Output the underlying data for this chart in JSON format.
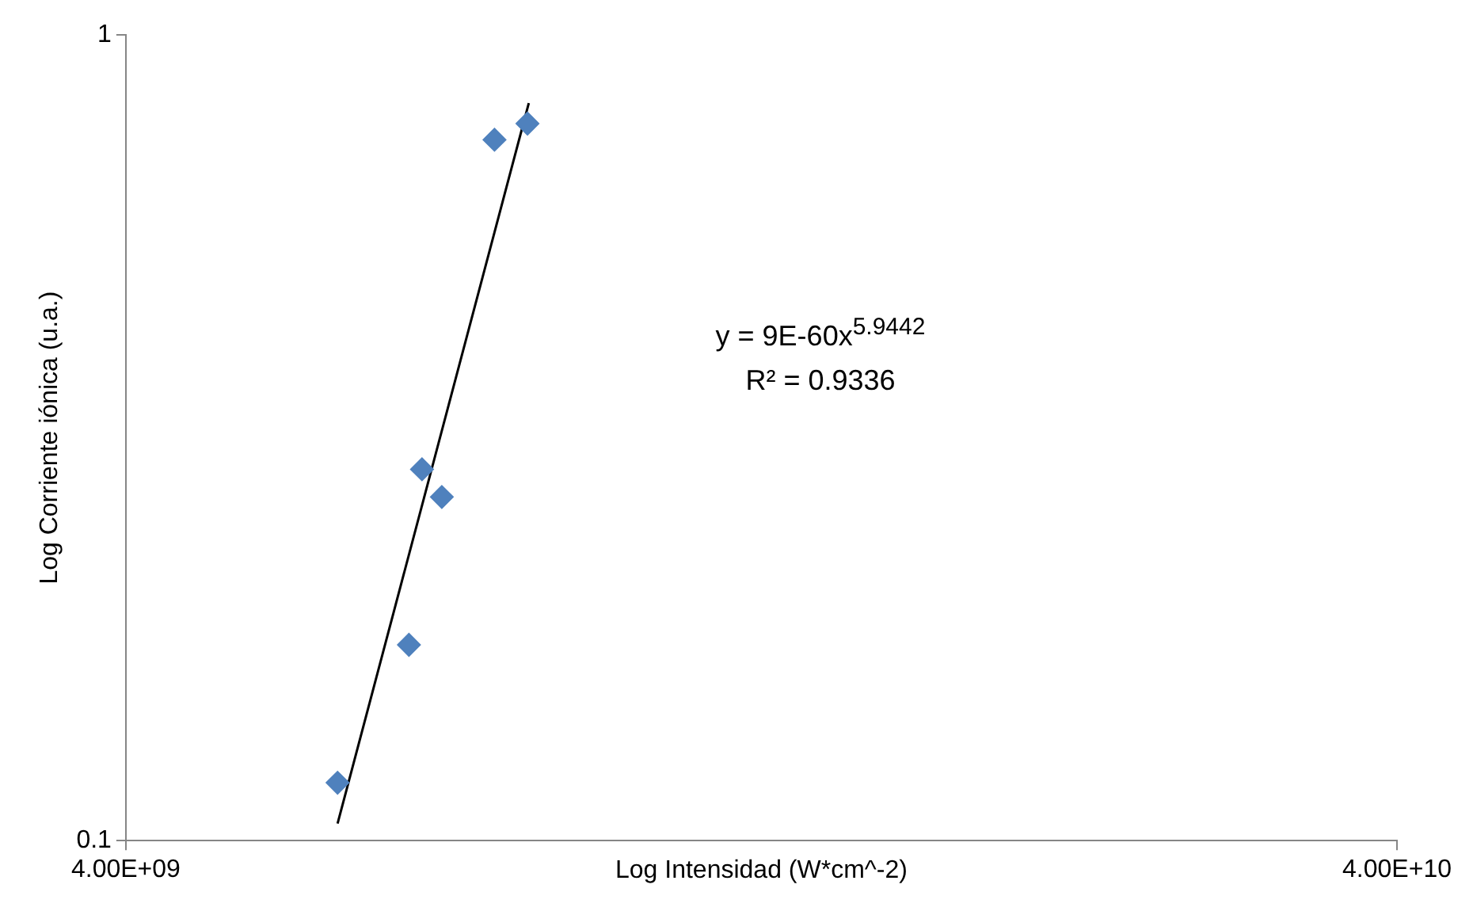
{
  "chart_data": {
    "type": "scatter",
    "xlabel": "Log Intensidad (W*cm^-2)",
    "ylabel": "Log Corriente iónica (u.a.)",
    "log": "xy",
    "grid": false,
    "marker": "diamond",
    "xlim": [
      4000000000,
      40000000000
    ],
    "xticks": [
      {
        "value": 4000000000,
        "label": "4.00E+09"
      },
      {
        "value": 40000000000,
        "label": "4.00E+10"
      }
    ],
    "ylim": [
      0.1,
      1
    ],
    "yticks": [
      0.1,
      1
    ],
    "series": [
      {
        "color": "#4f81bd",
        "x": [
          5870000000,
          6680000000,
          6840000000,
          7090000000,
          7800000000,
          8280000000
        ],
        "values": [
          0.118,
          0.175,
          0.289,
          0.267,
          0.741,
          0.776
        ]
      },
      {
        "type": "line",
        "color": "#000000",
        "marker": "none",
        "x": [
          5870000000,
          8300000000
        ],
        "values": [
          0.105,
          0.823
        ]
      }
    ],
    "annotations": [
      "y = 9E-60x$^{5.9442}$",
      "R² = 0.9336"
    ]
  }
}
